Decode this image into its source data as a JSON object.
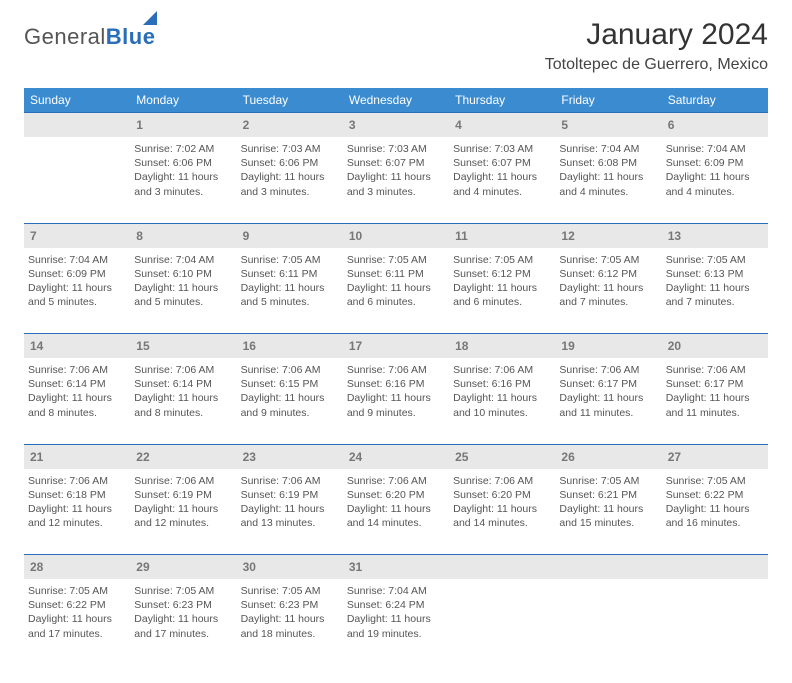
{
  "logo": {
    "word1": "General",
    "word2": "Blue"
  },
  "title": "January 2024",
  "location": "Totoltepec de Guerrero, Mexico",
  "header_bg": "#3b8bd1",
  "border_color": "#2a6db8",
  "daynum_bg": "#e8e8e8",
  "weekdays": [
    "Sunday",
    "Monday",
    "Tuesday",
    "Wednesday",
    "Thursday",
    "Friday",
    "Saturday"
  ],
  "weeks": [
    [
      null,
      {
        "n": "1",
        "sunrise": "Sunrise: 7:02 AM",
        "sunset": "Sunset: 6:06 PM",
        "daylight": "Daylight: 11 hours and 3 minutes."
      },
      {
        "n": "2",
        "sunrise": "Sunrise: 7:03 AM",
        "sunset": "Sunset: 6:06 PM",
        "daylight": "Daylight: 11 hours and 3 minutes."
      },
      {
        "n": "3",
        "sunrise": "Sunrise: 7:03 AM",
        "sunset": "Sunset: 6:07 PM",
        "daylight": "Daylight: 11 hours and 3 minutes."
      },
      {
        "n": "4",
        "sunrise": "Sunrise: 7:03 AM",
        "sunset": "Sunset: 6:07 PM",
        "daylight": "Daylight: 11 hours and 4 minutes."
      },
      {
        "n": "5",
        "sunrise": "Sunrise: 7:04 AM",
        "sunset": "Sunset: 6:08 PM",
        "daylight": "Daylight: 11 hours and 4 minutes."
      },
      {
        "n": "6",
        "sunrise": "Sunrise: 7:04 AM",
        "sunset": "Sunset: 6:09 PM",
        "daylight": "Daylight: 11 hours and 4 minutes."
      }
    ],
    [
      {
        "n": "7",
        "sunrise": "Sunrise: 7:04 AM",
        "sunset": "Sunset: 6:09 PM",
        "daylight": "Daylight: 11 hours and 5 minutes."
      },
      {
        "n": "8",
        "sunrise": "Sunrise: 7:04 AM",
        "sunset": "Sunset: 6:10 PM",
        "daylight": "Daylight: 11 hours and 5 minutes."
      },
      {
        "n": "9",
        "sunrise": "Sunrise: 7:05 AM",
        "sunset": "Sunset: 6:11 PM",
        "daylight": "Daylight: 11 hours and 5 minutes."
      },
      {
        "n": "10",
        "sunrise": "Sunrise: 7:05 AM",
        "sunset": "Sunset: 6:11 PM",
        "daylight": "Daylight: 11 hours and 6 minutes."
      },
      {
        "n": "11",
        "sunrise": "Sunrise: 7:05 AM",
        "sunset": "Sunset: 6:12 PM",
        "daylight": "Daylight: 11 hours and 6 minutes."
      },
      {
        "n": "12",
        "sunrise": "Sunrise: 7:05 AM",
        "sunset": "Sunset: 6:12 PM",
        "daylight": "Daylight: 11 hours and 7 minutes."
      },
      {
        "n": "13",
        "sunrise": "Sunrise: 7:05 AM",
        "sunset": "Sunset: 6:13 PM",
        "daylight": "Daylight: 11 hours and 7 minutes."
      }
    ],
    [
      {
        "n": "14",
        "sunrise": "Sunrise: 7:06 AM",
        "sunset": "Sunset: 6:14 PM",
        "daylight": "Daylight: 11 hours and 8 minutes."
      },
      {
        "n": "15",
        "sunrise": "Sunrise: 7:06 AM",
        "sunset": "Sunset: 6:14 PM",
        "daylight": "Daylight: 11 hours and 8 minutes."
      },
      {
        "n": "16",
        "sunrise": "Sunrise: 7:06 AM",
        "sunset": "Sunset: 6:15 PM",
        "daylight": "Daylight: 11 hours and 9 minutes."
      },
      {
        "n": "17",
        "sunrise": "Sunrise: 7:06 AM",
        "sunset": "Sunset: 6:16 PM",
        "daylight": "Daylight: 11 hours and 9 minutes."
      },
      {
        "n": "18",
        "sunrise": "Sunrise: 7:06 AM",
        "sunset": "Sunset: 6:16 PM",
        "daylight": "Daylight: 11 hours and 10 minutes."
      },
      {
        "n": "19",
        "sunrise": "Sunrise: 7:06 AM",
        "sunset": "Sunset: 6:17 PM",
        "daylight": "Daylight: 11 hours and 11 minutes."
      },
      {
        "n": "20",
        "sunrise": "Sunrise: 7:06 AM",
        "sunset": "Sunset: 6:17 PM",
        "daylight": "Daylight: 11 hours and 11 minutes."
      }
    ],
    [
      {
        "n": "21",
        "sunrise": "Sunrise: 7:06 AM",
        "sunset": "Sunset: 6:18 PM",
        "daylight": "Daylight: 11 hours and 12 minutes."
      },
      {
        "n": "22",
        "sunrise": "Sunrise: 7:06 AM",
        "sunset": "Sunset: 6:19 PM",
        "daylight": "Daylight: 11 hours and 12 minutes."
      },
      {
        "n": "23",
        "sunrise": "Sunrise: 7:06 AM",
        "sunset": "Sunset: 6:19 PM",
        "daylight": "Daylight: 11 hours and 13 minutes."
      },
      {
        "n": "24",
        "sunrise": "Sunrise: 7:06 AM",
        "sunset": "Sunset: 6:20 PM",
        "daylight": "Daylight: 11 hours and 14 minutes."
      },
      {
        "n": "25",
        "sunrise": "Sunrise: 7:06 AM",
        "sunset": "Sunset: 6:20 PM",
        "daylight": "Daylight: 11 hours and 14 minutes."
      },
      {
        "n": "26",
        "sunrise": "Sunrise: 7:05 AM",
        "sunset": "Sunset: 6:21 PM",
        "daylight": "Daylight: 11 hours and 15 minutes."
      },
      {
        "n": "27",
        "sunrise": "Sunrise: 7:05 AM",
        "sunset": "Sunset: 6:22 PM",
        "daylight": "Daylight: 11 hours and 16 minutes."
      }
    ],
    [
      {
        "n": "28",
        "sunrise": "Sunrise: 7:05 AM",
        "sunset": "Sunset: 6:22 PM",
        "daylight": "Daylight: 11 hours and 17 minutes."
      },
      {
        "n": "29",
        "sunrise": "Sunrise: 7:05 AM",
        "sunset": "Sunset: 6:23 PM",
        "daylight": "Daylight: 11 hours and 17 minutes."
      },
      {
        "n": "30",
        "sunrise": "Sunrise: 7:05 AM",
        "sunset": "Sunset: 6:23 PM",
        "daylight": "Daylight: 11 hours and 18 minutes."
      },
      {
        "n": "31",
        "sunrise": "Sunrise: 7:04 AM",
        "sunset": "Sunset: 6:24 PM",
        "daylight": "Daylight: 11 hours and 19 minutes."
      },
      null,
      null,
      null
    ]
  ]
}
